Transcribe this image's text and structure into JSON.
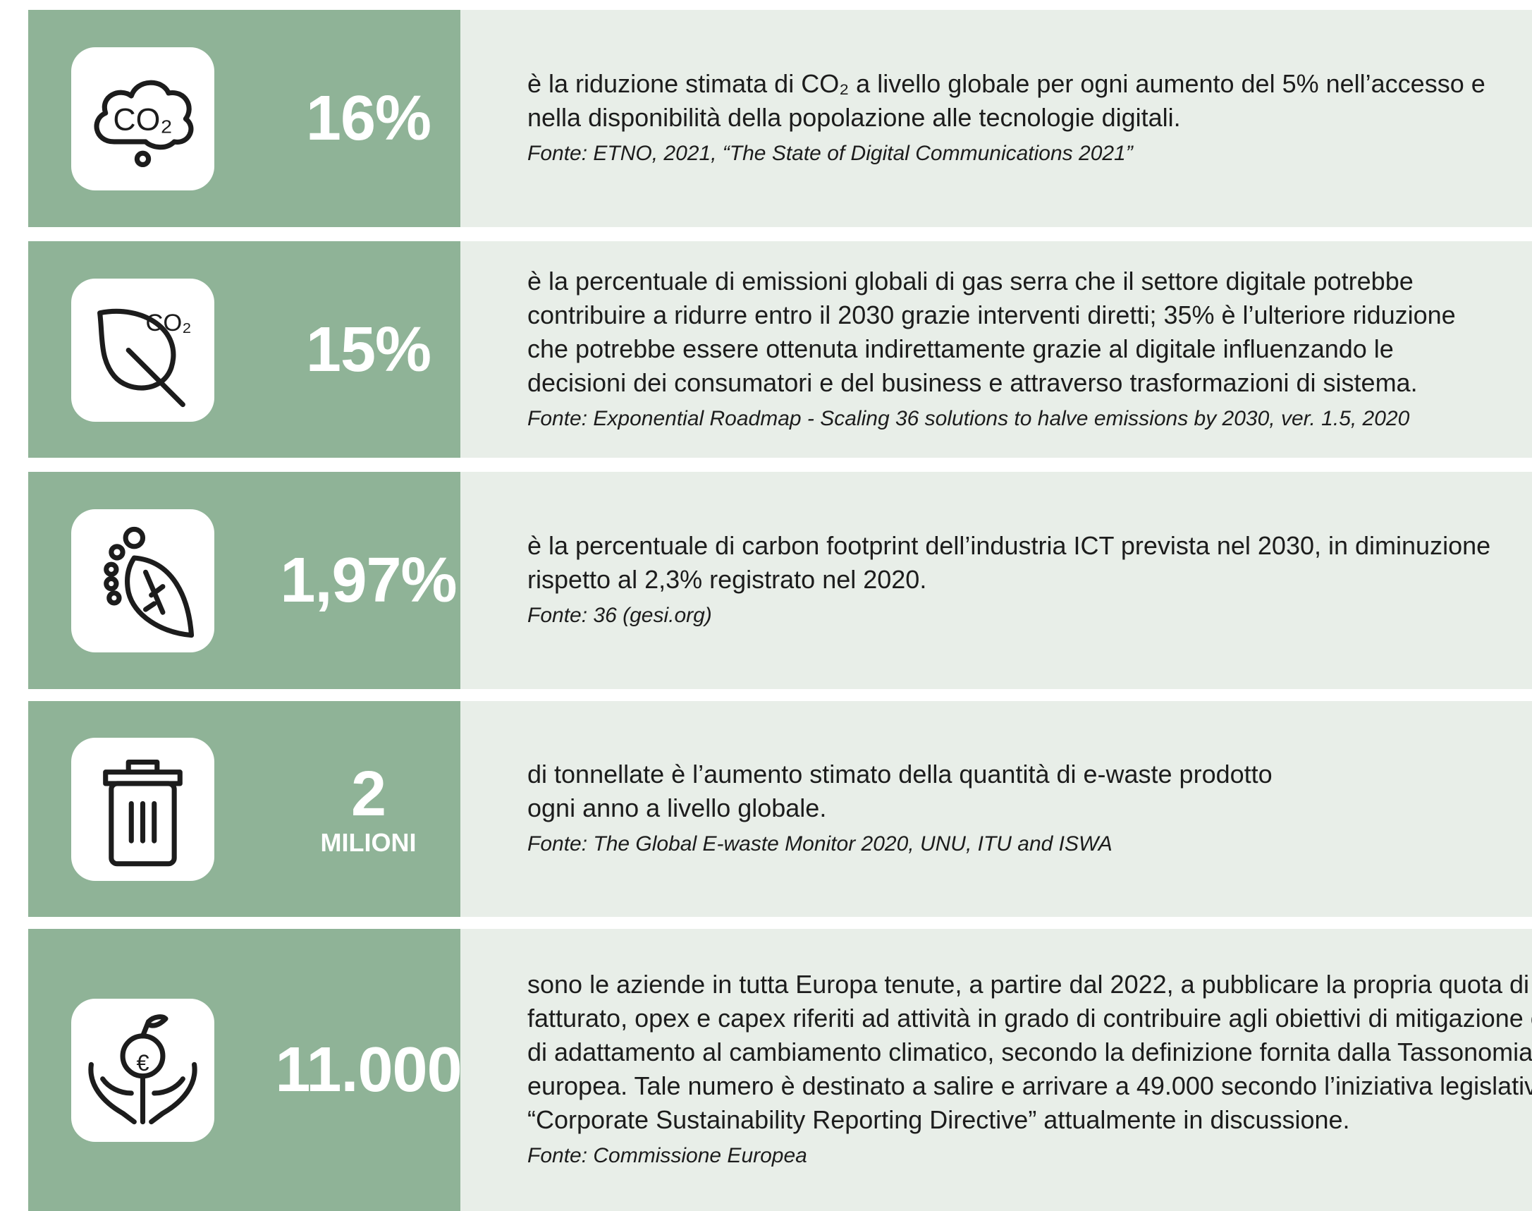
{
  "rows": [
    {
      "number": "16%",
      "icon_label": "CO₂",
      "lines": [
        "è la riduzione stimata di CO₂ a livello globale per ogni aumento del 5% nell’accesso e",
        "nella disponibilità della popolazione alle tecnologie digitali."
      ],
      "source": "Fonte: ETNO, 2021, “The State of Digital Communications 2021”"
    },
    {
      "number": "15%",
      "icon_label": "CO₂",
      "lines": [
        "è la percentuale di emissioni globali di gas serra che il settore digitale potrebbe",
        "contribuire a ridurre entro il 2030 grazie interventi diretti; 35% è l’ulteriore riduzione",
        "che potrebbe essere ottenuta indirettamente grazie al digitale influenzando le",
        "decisioni dei consumatori e del business e attraverso trasformazioni di sistema."
      ],
      "source": "Fonte: Exponential Roadmap - Scaling 36 solutions to halve emissions by 2030, ver. 1.5, 2020"
    },
    {
      "number": "1,97%",
      "lines": [
        "è la percentuale di carbon footprint dell’industria ICT prevista nel 2030, in diminuzione",
        "rispetto al 2,3% registrato nel 2020."
      ],
      "source": "Fonte: 36 (gesi.org)"
    },
    {
      "number": "2",
      "unit": "MILIONI",
      "lines": [
        "di tonnellate è l’aumento stimato della quantità di e-waste prodotto",
        "ogni anno a livello globale."
      ],
      "source": "Fonte: The Global E-waste Monitor 2020, UNU, ITU and ISWA"
    },
    {
      "number": "11.000",
      "icon_label": "€",
      "lines": [
        "sono le aziende in tutta Europa tenute, a partire dal 2022, a pubblicare la propria quota di",
        "fatturato, opex e capex riferiti ad attività in grado di contribuire agli obiettivi di mitigazione e",
        "di adattamento al cambiamento climatico, secondo la definizione fornita dalla Tassonomia",
        "europea. Tale numero è destinato a salire e arrivare a 49.000 secondo l’iniziativa legislativa",
        "“Corporate Sustainability Reporting Directive” attualmente in discussione."
      ],
      "source": "Fonte: Commissione Europea"
    }
  ]
}
